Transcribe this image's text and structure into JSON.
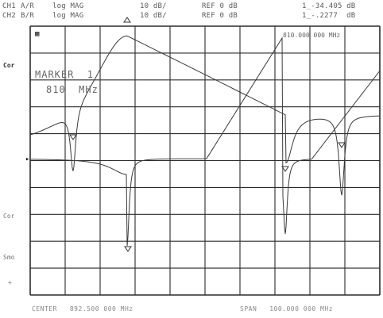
{
  "header": {
    "ch1_label": "CH1",
    "ch1_param": "A/R",
    "ch1_format": "log MAG",
    "ch1_scale": "10 dB/",
    "ch1_ref": "REF 0 dB",
    "ch1_marker_value": "1_-34.405 dB",
    "ch2_label": "CH2",
    "ch2_param": "B/R",
    "ch2_format": "log MAG",
    "ch2_scale": "10 dB/",
    "ch2_ref": "REF 0 dB",
    "ch2_marker_value": "1_-.2277  dB"
  },
  "side": {
    "top_icon": "▩",
    "cor_top": "Cor",
    "cor_bottom": "Cor",
    "smo": "Smo",
    "ref_marker": "▸",
    "cross": "+"
  },
  "marker": {
    "title": "MARKER  1",
    "freq": "810  MHz",
    "readout": "810.000 000 MHz"
  },
  "footer": {
    "center": "CENTER   892.500 000 MHz",
    "span": "SPAN   100.000 000 MHz"
  },
  "colors": {
    "grid": "#2b2b2b",
    "trace": "#3a3a3a",
    "background": "#ffffff"
  }
}
